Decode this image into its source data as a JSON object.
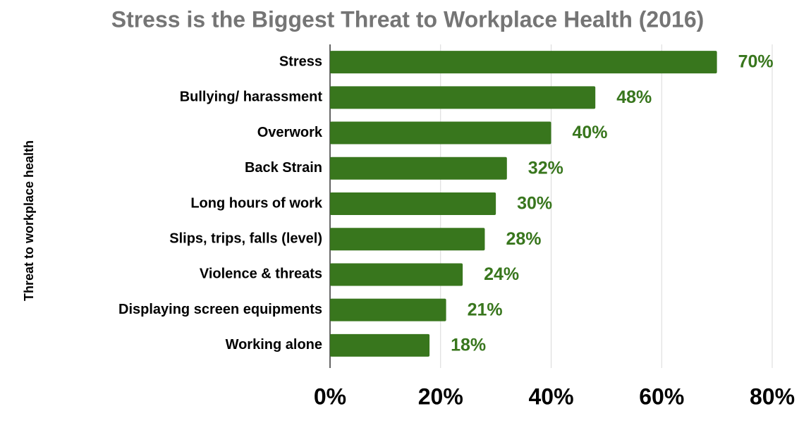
{
  "chart_data": {
    "type": "bar",
    "orientation": "horizontal",
    "title": "Stress is the Biggest Threat to Workplace Health (2016)",
    "y_label": "Threat to workplace health",
    "categories": [
      "Stress",
      "Bullying/ harassment",
      "Overwork",
      "Back Strain",
      "Long hours of work",
      "Slips, trips, falls (level)",
      "Violence & threats",
      "Displaying screen equipments",
      "Working alone"
    ],
    "values": [
      70,
      48,
      40,
      32,
      30,
      28,
      24,
      21,
      18
    ],
    "value_labels": [
      "70%",
      "48%",
      "40%",
      "32%",
      "30%",
      "28%",
      "24%",
      "21%",
      "18%"
    ],
    "color": "#38761d",
    "xlim": [
      0,
      80
    ],
    "xticks": [
      {
        "value": 0,
        "label": "0%"
      },
      {
        "value": 20,
        "label": "20%"
      },
      {
        "value": 40,
        "label": "40%"
      },
      {
        "value": 60,
        "label": "60%"
      },
      {
        "value": 80,
        "label": "80%"
      }
    ],
    "grid": true
  }
}
